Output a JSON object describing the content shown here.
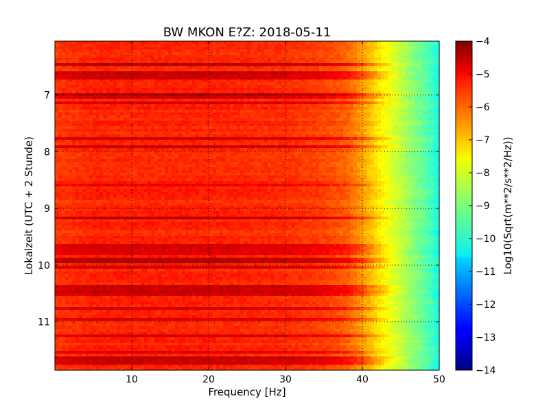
{
  "chart_data": {
    "type": "heatmap",
    "title": "BW MKON E?Z: 2018-05-11",
    "xlabel": "Frequency [Hz]",
    "ylabel": "Lokalzeit (UTC + 2 Stunde)",
    "xlim": [
      0,
      50
    ],
    "ylim": [
      11.85,
      6.05
    ],
    "y_inverted": true,
    "x_ticks": [
      10,
      20,
      30,
      40,
      50
    ],
    "x_tick_labels": [
      "10",
      "20",
      "30",
      "40",
      "50"
    ],
    "y_ticks": [
      7,
      8,
      9,
      10,
      11
    ],
    "y_tick_labels": [
      "7",
      "8",
      "9",
      "10",
      "11"
    ],
    "grid": true,
    "colorbar": {
      "label": "Log10(Sqrt(m**2/s**2/Hz))",
      "range": [
        -14,
        -4
      ],
      "ticks": [
        -4,
        -5,
        -6,
        -7,
        -8,
        -9,
        -10,
        -11,
        -12,
        -13,
        -14
      ],
      "tick_labels": [
        "−4",
        "−5",
        "−6",
        "−7",
        "−8",
        "−9",
        "−10",
        "−11",
        "−12",
        "−13",
        "−14"
      ],
      "colormap": "jet"
    },
    "frequency_profile": {
      "frequency_hz": [
        0,
        5,
        10,
        20,
        30,
        35,
        38,
        40,
        42,
        44,
        46,
        48,
        50
      ],
      "level": [
        -5.8,
        -5.6,
        -5.6,
        -5.6,
        -5.7,
        -5.9,
        -6.2,
        -6.8,
        -7.5,
        -8.1,
        -8.7,
        -9.3,
        -10.0
      ]
    },
    "strong_time_bands": [
      {
        "from": 6.45,
        "to": 6.5,
        "offset": 1.0
      },
      {
        "from": 6.6,
        "to": 6.75,
        "offset": 0.9
      },
      {
        "from": 6.95,
        "to": 7.05,
        "offset": 0.9
      },
      {
        "from": 7.1,
        "to": 7.15,
        "offset": 0.7
      },
      {
        "from": 7.75,
        "to": 7.8,
        "offset": 0.7
      },
      {
        "from": 7.9,
        "to": 7.95,
        "offset": 0.8
      },
      {
        "from": 8.55,
        "to": 8.6,
        "offset": 0.6
      },
      {
        "from": 8.8,
        "to": 8.82,
        "offset": 0.7
      },
      {
        "from": 9.15,
        "to": 9.18,
        "offset": 0.9
      },
      {
        "from": 9.63,
        "to": 9.8,
        "offset": 0.8
      },
      {
        "from": 9.85,
        "to": 9.95,
        "offset": 1.1
      },
      {
        "from": 10.0,
        "to": 10.05,
        "offset": 0.8
      },
      {
        "from": 10.2,
        "to": 10.22,
        "offset": 0.7
      },
      {
        "from": 10.33,
        "to": 10.55,
        "offset": 0.9
      },
      {
        "from": 10.75,
        "to": 10.8,
        "offset": 0.8
      },
      {
        "from": 10.95,
        "to": 11.0,
        "offset": 0.7
      },
      {
        "from": 11.2,
        "to": 11.25,
        "offset": 0.7
      },
      {
        "from": 11.5,
        "to": 11.55,
        "offset": 0.7
      },
      {
        "from": 11.6,
        "to": 11.75,
        "offset": 0.9
      }
    ]
  }
}
